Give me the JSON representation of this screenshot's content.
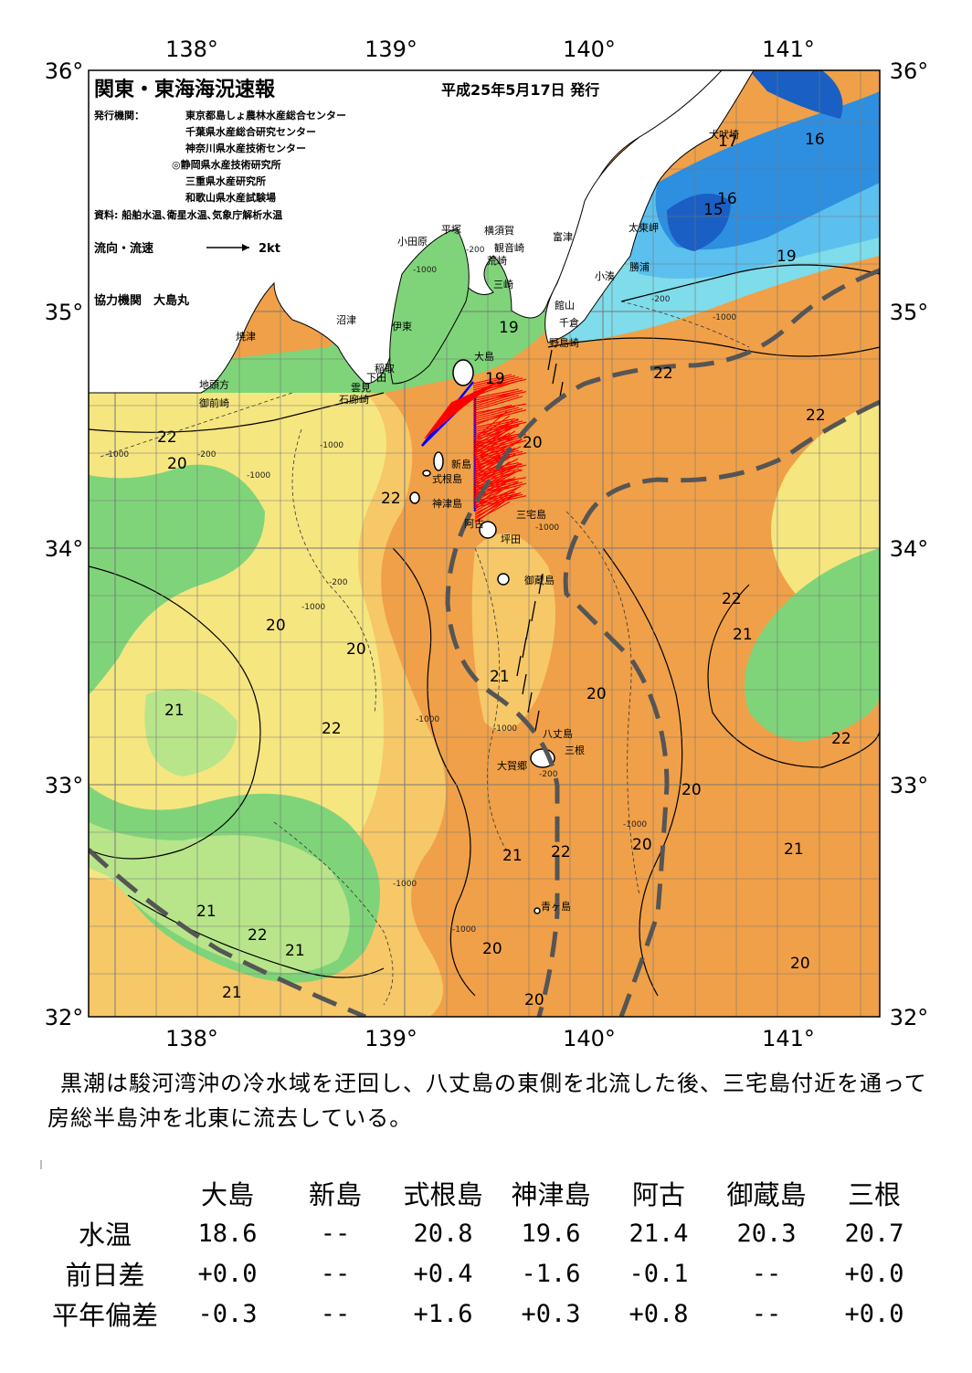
{
  "title": "関東・東海海況速報",
  "issue_date": "平成25年5月17日 発行",
  "publisher_label": "発行機関：",
  "publishers": [
    "東京都島しょ農林水産総合センター",
    "千葉県水産総合研究センター",
    "神奈川県水産技術センター",
    "◎静岡県水産技術研究所",
    "三重県水産研究所",
    "和歌山県水産試験場"
  ],
  "sources": "資料: 船舶水温､衛星水温､気象庁解析水温",
  "current_legend": {
    "label": "流向・流速",
    "scale": "2kt"
  },
  "cooperator": "協力機関　大島丸",
  "axes": {
    "lon_ticks": [
      "138°",
      "139°",
      "140°",
      "141°"
    ],
    "lat_ticks": [
      "36°",
      "35°",
      "34°",
      "33°",
      "32°"
    ]
  },
  "place_names": {
    "odawara": "小田原",
    "hiratsuka": "平塚",
    "yokosuka": "横須賀",
    "kannonzaki": "観音崎",
    "futtsu": "富津",
    "arasaki": "荒崎",
    "misaki": "三崎",
    "tateyama": "館山",
    "chikura": "千倉",
    "nojimazaki": "野島崎",
    "kominato": "小湊",
    "katsuura": "勝浦",
    "taitomisaki": "太東岬",
    "inubozaki": "犬吠埼",
    "numazu": "沼津",
    "yaizu": "焼津",
    "ito": "伊東",
    "inatori": "稲取",
    "shimoda": "下田",
    "kumomi": "雲見",
    "irozaki": "石廊崎",
    "jitokata": "地頭方",
    "omaezaki": "御前崎",
    "oshima": "大島",
    "niijima": "新島",
    "shikinejima": "式根島",
    "kozushima": "神津島",
    "miyakejima": "三宅島",
    "ako": "阿古",
    "tsubota": "坪田",
    "mikurajima": "御蔵島",
    "hachijojima": "八丈島",
    "mitsune": "三根",
    "okago": "大賀郷",
    "aogashima": "青ヶ島"
  },
  "isotherm_labels": [
    "17",
    "16",
    "16",
    "15",
    "19",
    "19",
    "19",
    "22",
    "22",
    "22",
    "20",
    "20",
    "22",
    "22",
    "21",
    "20",
    "20",
    "21",
    "20",
    "21",
    "22",
    "22",
    "20",
    "20",
    "21",
    "21",
    "22",
    "21",
    "22",
    "21",
    "20",
    "20",
    "21",
    "20",
    "22",
    "21",
    "22"
  ],
  "depth_labels": [
    "-1000",
    "-200",
    "-1000",
    "-200",
    "-1000",
    "-200",
    "-1000",
    "-200",
    "-1000",
    "-1000",
    "-1000",
    "-1000",
    "-1000",
    "-1000",
    "-200",
    "-1000",
    "-1000"
  ],
  "description": "黒潮は駿河湾沖の冷水域を迂回し、八丈島の東側を北流した後、三宅島付近を通って房総半島沖を北東に流去している。",
  "table": {
    "columns": [
      "大島",
      "新島",
      "式根島",
      "神津島",
      "阿古",
      "御蔵島",
      "三根"
    ],
    "rows": [
      {
        "label": "水温",
        "values": [
          "18.6",
          "--",
          "20.8",
          "19.6",
          "21.4",
          "20.3",
          "20.7"
        ]
      },
      {
        "label": "前日差",
        "values": [
          "+0.0",
          "--",
          "+0.4",
          "-1.6",
          "-0.1",
          "--",
          "+0.0"
        ]
      },
      {
        "label": "平年偏差",
        "values": [
          "-0.3",
          "--",
          "+1.6",
          "+0.3",
          "+0.8",
          "--",
          "+0.0"
        ]
      }
    ]
  },
  "colors": {
    "cold_deep": "#1a5fc4",
    "cold": "#2e8fe0",
    "cool": "#5cc0ee",
    "cyan": "#7fdcea",
    "green": "#7fd47a",
    "pale_green": "#b8e58a",
    "yellow": "#f6e680",
    "light_orange": "#f6c868",
    "orange": "#f0a048",
    "land": "#ffffff",
    "kuroshio_axis": "#555555",
    "current_vector": "#ff0000",
    "track": "#0000ff"
  }
}
